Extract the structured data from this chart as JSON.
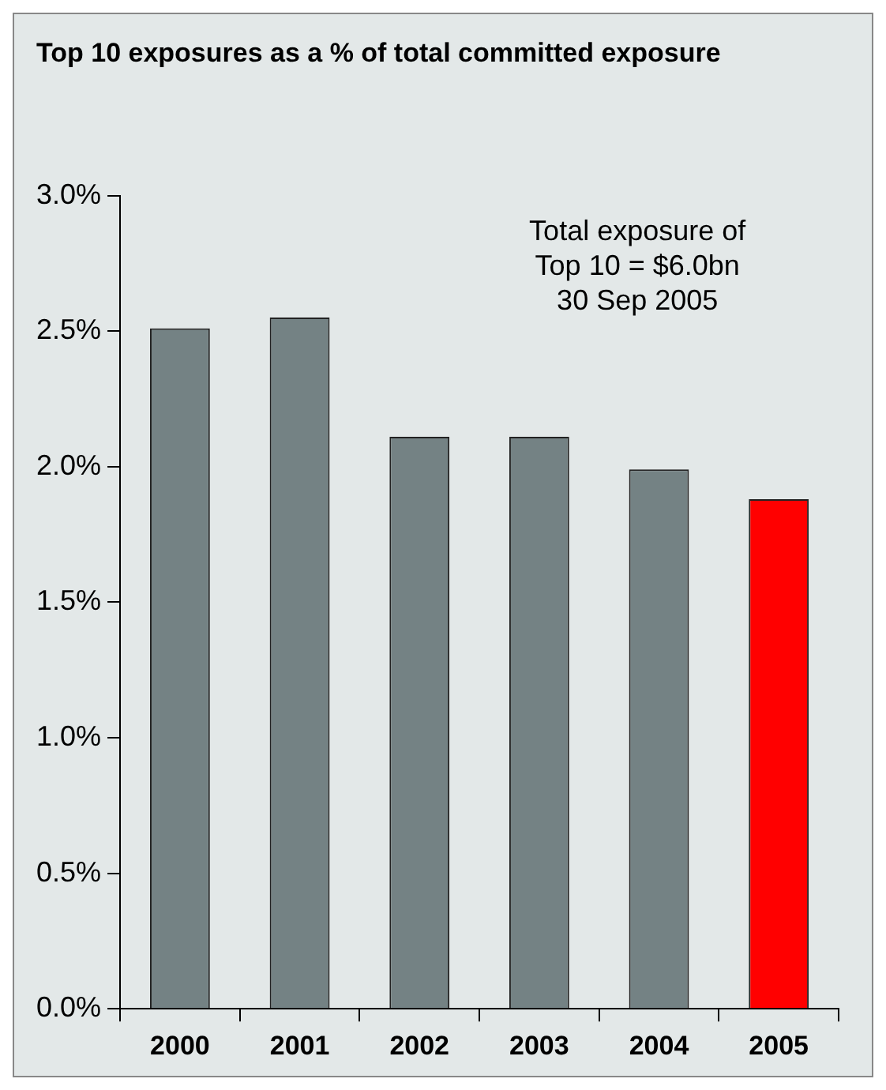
{
  "chart_data": {
    "type": "bar",
    "title": "Top 10 exposures as a % of total committed exposure",
    "categories": [
      "2000",
      "2001",
      "2002",
      "2003",
      "2004",
      "2005"
    ],
    "values": [
      2.51,
      2.55,
      2.11,
      2.11,
      1.99,
      1.88
    ],
    "colors": [
      "#748284",
      "#748284",
      "#748284",
      "#748284",
      "#748284",
      "#ff0000"
    ],
    "ylim": [
      0,
      3
    ],
    "yticks": [
      {
        "value": 0,
        "label": "0.0%"
      },
      {
        "value": 0.5,
        "label": "0.5%"
      },
      {
        "value": 1,
        "label": "1.0%"
      },
      {
        "value": 1.5,
        "label": "1.5%"
      },
      {
        "value": 2,
        "label": "2.0%"
      },
      {
        "value": 2.5,
        "label": "2.5%"
      },
      {
        "value": 3,
        "label": "3.0%"
      }
    ],
    "annotations": [
      "Total exposure of\nTop 10 = $6.0bn\n30 Sep 2005"
    ],
    "grid": false,
    "legend": false
  }
}
